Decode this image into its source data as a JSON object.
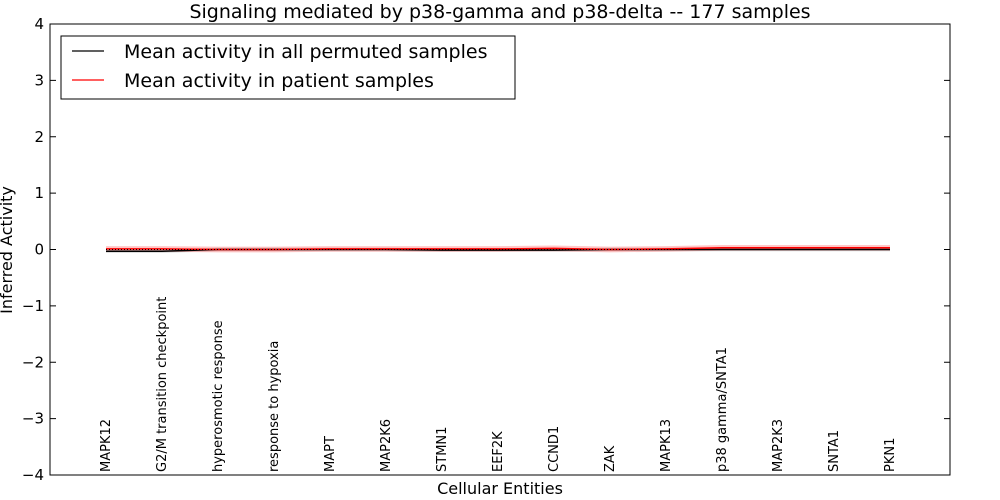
{
  "chart_data": {
    "type": "line",
    "title": "Signaling mediated by p38-gamma and p38-delta -- 177 samples",
    "xlabel": "Cellular Entities",
    "ylabel": "Inferred Activity",
    "ylim": [
      -4,
      4
    ],
    "yticks": [
      {
        "value": 4,
        "label": "4"
      },
      {
        "value": 3,
        "label": "3"
      },
      {
        "value": 2,
        "label": "2"
      },
      {
        "value": 1,
        "label": "1"
      },
      {
        "value": 0,
        "label": "0"
      },
      {
        "value": -1,
        "label": "−1"
      },
      {
        "value": -2,
        "label": "−2"
      },
      {
        "value": -3,
        "label": "−3"
      },
      {
        "value": -4,
        "label": "−4"
      }
    ],
    "categories": [
      "MAPK12",
      "G2/M transition checkpoint",
      "hyperosmotic response",
      "response to hypoxia",
      "MAPT",
      "MAP2K6",
      "STMN1",
      "EEF2K",
      "CCND1",
      "ZAK",
      "MAPK13",
      "p38 gamma/SNTA1",
      "MAP2K3",
      "SNTA1",
      "PKN1"
    ],
    "series": [
      {
        "name": "Mean activity in all permuted samples",
        "color": "#000000",
        "values": [
          -0.03,
          -0.03,
          0.0,
          0.0,
          0.0,
          0.0,
          -0.01,
          -0.01,
          -0.01,
          0.0,
          0.0,
          0.0,
          0.0,
          0.0,
          0.0
        ],
        "band": 0.03
      },
      {
        "name": "Mean activity in patient samples",
        "color": "#ff0000",
        "values": [
          0.01,
          0.01,
          0.0,
          0.0,
          0.01,
          0.01,
          0.01,
          0.01,
          0.02,
          0.0,
          0.01,
          0.03,
          0.03,
          0.03,
          0.03
        ],
        "band": 0.05
      }
    ],
    "legend": "top-left"
  }
}
